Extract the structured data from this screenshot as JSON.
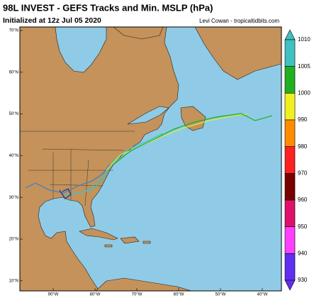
{
  "header": {
    "title": "98L INVEST - GEFS Tracks and Min. MSLP (hPa)",
    "subtitle": "Initialized at 12z Jul 05 2020",
    "credit": "Levi Cowan - tropicaltidbits.com"
  },
  "map": {
    "lat_labels": [
      "70°N",
      "60°N",
      "50°N",
      "40°N",
      "30°N",
      "20°N",
      "10°N"
    ],
    "lon_labels": [
      "90°W",
      "80°W",
      "70°W",
      "60°W",
      "50°W",
      "40°W"
    ]
  },
  "colorbar": {
    "ticks": [
      1010,
      1005,
      1000,
      990,
      980,
      970,
      960,
      950,
      940,
      930
    ]
  }
}
